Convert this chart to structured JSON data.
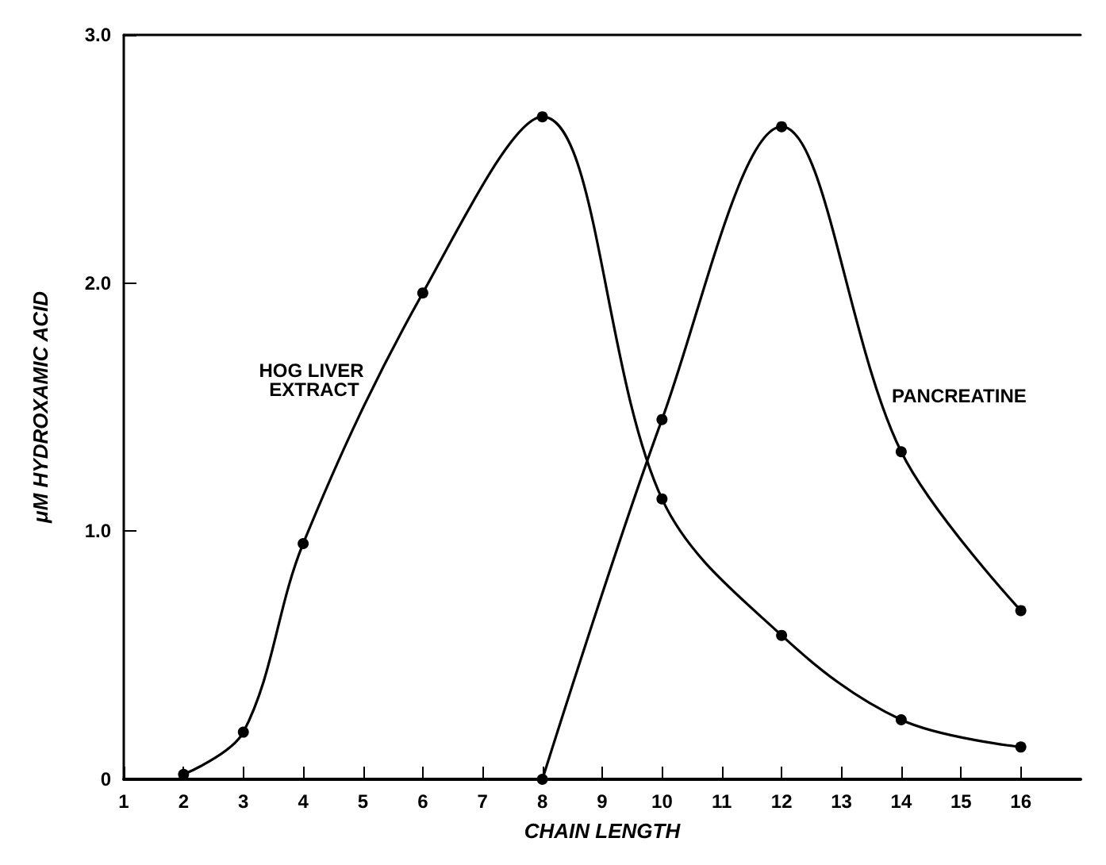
{
  "chart_data": {
    "type": "line",
    "xlabel": "CHAIN LENGTH",
    "ylabel": "μM HYDROXAMIC ACID",
    "xlim": [
      1,
      17
    ],
    "xticks": [
      1,
      2,
      3,
      4,
      5,
      6,
      7,
      8,
      9,
      10,
      11,
      12,
      13,
      14,
      15,
      16
    ],
    "ylim": [
      0,
      3
    ],
    "yticks": [
      0,
      {
        "value": 1,
        "label": "1.0"
      },
      {
        "value": 2,
        "label": "2.0"
      },
      {
        "value": 3,
        "label": "3.0"
      }
    ],
    "grid": false,
    "legend": false,
    "marker": "circle",
    "line_style": "solid",
    "series": [
      {
        "name": "HOG LIVER EXTRACT",
        "color": "#000000",
        "x": [
          2,
          3,
          4,
          6,
          8,
          10,
          12,
          14,
          16
        ],
        "values": [
          0.02,
          0.19,
          0.95,
          1.96,
          2.67,
          1.13,
          0.58,
          0.24,
          0.13
        ]
      },
      {
        "name": "PANCREATINE",
        "color": "#000000",
        "x": [
          8,
          10,
          12,
          14,
          16
        ],
        "values": [
          0,
          1.45,
          2.63,
          1.32,
          0.68
        ]
      }
    ]
  }
}
